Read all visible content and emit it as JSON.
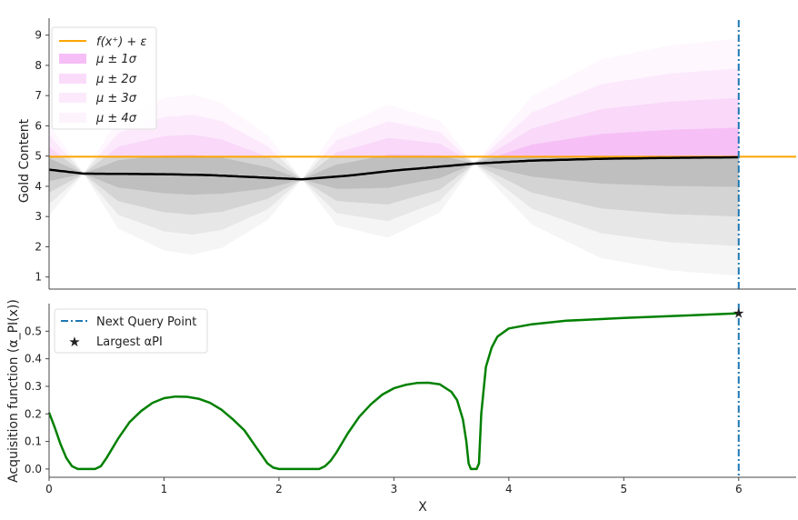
{
  "chart_data": [
    {
      "type": "area",
      "name": "posterior",
      "ylabel": "Gold Content",
      "xlim": [
        0,
        6.5
      ],
      "ylim": [
        0.6,
        9.5
      ],
      "yticks": [
        "1",
        "2",
        "3",
        "4",
        "5",
        "6",
        "7",
        "8",
        "9"
      ],
      "colors": {
        "mean": "#000000",
        "best": "#ffa500",
        "band_above": "#ee88ee",
        "band_below": "#808080",
        "query": "#1f77b4"
      },
      "legend": [
        "f(x⁺) + ε",
        "μ ± 1σ",
        "μ ± 2σ",
        "μ ± 3σ",
        "μ ± 4σ"
      ],
      "best_value": 4.98,
      "observations_x": [
        0.3,
        2.2,
        3.7,
        6.0
      ],
      "mean": {
        "x": [
          0,
          0.3,
          0.6,
          1.0,
          1.4,
          1.8,
          2.2,
          2.6,
          3.0,
          3.4,
          3.7,
          4.2,
          4.8,
          5.4,
          6.0
        ],
        "y": [
          4.55,
          4.42,
          4.41,
          4.4,
          4.37,
          4.3,
          4.23,
          4.35,
          4.52,
          4.65,
          4.75,
          4.85,
          4.91,
          4.94,
          4.96
        ]
      },
      "sigma": {
        "x": [
          0,
          0.3,
          0.6,
          1.0,
          1.25,
          1.5,
          1.9,
          2.2,
          2.5,
          2.95,
          3.4,
          3.7,
          4.2,
          4.8,
          5.4,
          6.0
        ],
        "y": [
          0.38,
          0.0,
          0.45,
          0.63,
          0.66,
          0.6,
          0.35,
          0.0,
          0.4,
          0.55,
          0.38,
          0.0,
          0.53,
          0.82,
          0.93,
          0.98
        ]
      }
    },
    {
      "type": "line",
      "name": "acquisition",
      "xlabel": "X",
      "ylabel": "Acquisition function (α_PI(x))",
      "xlim": [
        0,
        6.5
      ],
      "ylim": [
        -0.03,
        0.6
      ],
      "xticks": [
        "0",
        "1",
        "2",
        "3",
        "4",
        "5",
        "6"
      ],
      "yticks": [
        "0.0",
        "0.1",
        "0.2",
        "0.3",
        "0.4",
        "0.5"
      ],
      "colors": {
        "line": "#008000",
        "marker": "#0b0b6e",
        "query": "#1f77b4"
      },
      "legend": [
        "Next Query Point",
        "Largest αPI"
      ],
      "next_query_x": 6.0,
      "largest_point": {
        "x": 6.0,
        "y": 0.565
      },
      "x": [
        0,
        0.05,
        0.1,
        0.15,
        0.2,
        0.25,
        0.3,
        0.35,
        0.4,
        0.45,
        0.5,
        0.6,
        0.7,
        0.8,
        0.9,
        1.0,
        1.1,
        1.2,
        1.3,
        1.4,
        1.5,
        1.6,
        1.7,
        1.8,
        1.85,
        1.9,
        1.95,
        2.0,
        2.1,
        2.2,
        2.3,
        2.35,
        2.4,
        2.45,
        2.5,
        2.6,
        2.7,
        2.8,
        2.9,
        3.0,
        3.1,
        3.2,
        3.3,
        3.4,
        3.5,
        3.55,
        3.6,
        3.63,
        3.65,
        3.67,
        3.7,
        3.72,
        3.74,
        3.76,
        3.8,
        3.85,
        3.9,
        4.0,
        4.2,
        4.5,
        5.0,
        5.5,
        6.0
      ],
      "y": [
        0.205,
        0.15,
        0.09,
        0.04,
        0.01,
        0.0,
        0.0,
        0.0,
        0.0,
        0.01,
        0.04,
        0.11,
        0.17,
        0.21,
        0.24,
        0.257,
        0.263,
        0.262,
        0.255,
        0.24,
        0.215,
        0.18,
        0.14,
        0.08,
        0.05,
        0.02,
        0.005,
        0.0,
        0.0,
        0.0,
        0.0,
        0.0,
        0.01,
        0.03,
        0.06,
        0.13,
        0.19,
        0.235,
        0.27,
        0.293,
        0.305,
        0.312,
        0.313,
        0.307,
        0.28,
        0.25,
        0.18,
        0.1,
        0.02,
        0.0,
        0.0,
        0.0,
        0.02,
        0.2,
        0.37,
        0.44,
        0.48,
        0.51,
        0.525,
        0.538,
        0.548,
        0.556,
        0.565
      ]
    }
  ]
}
